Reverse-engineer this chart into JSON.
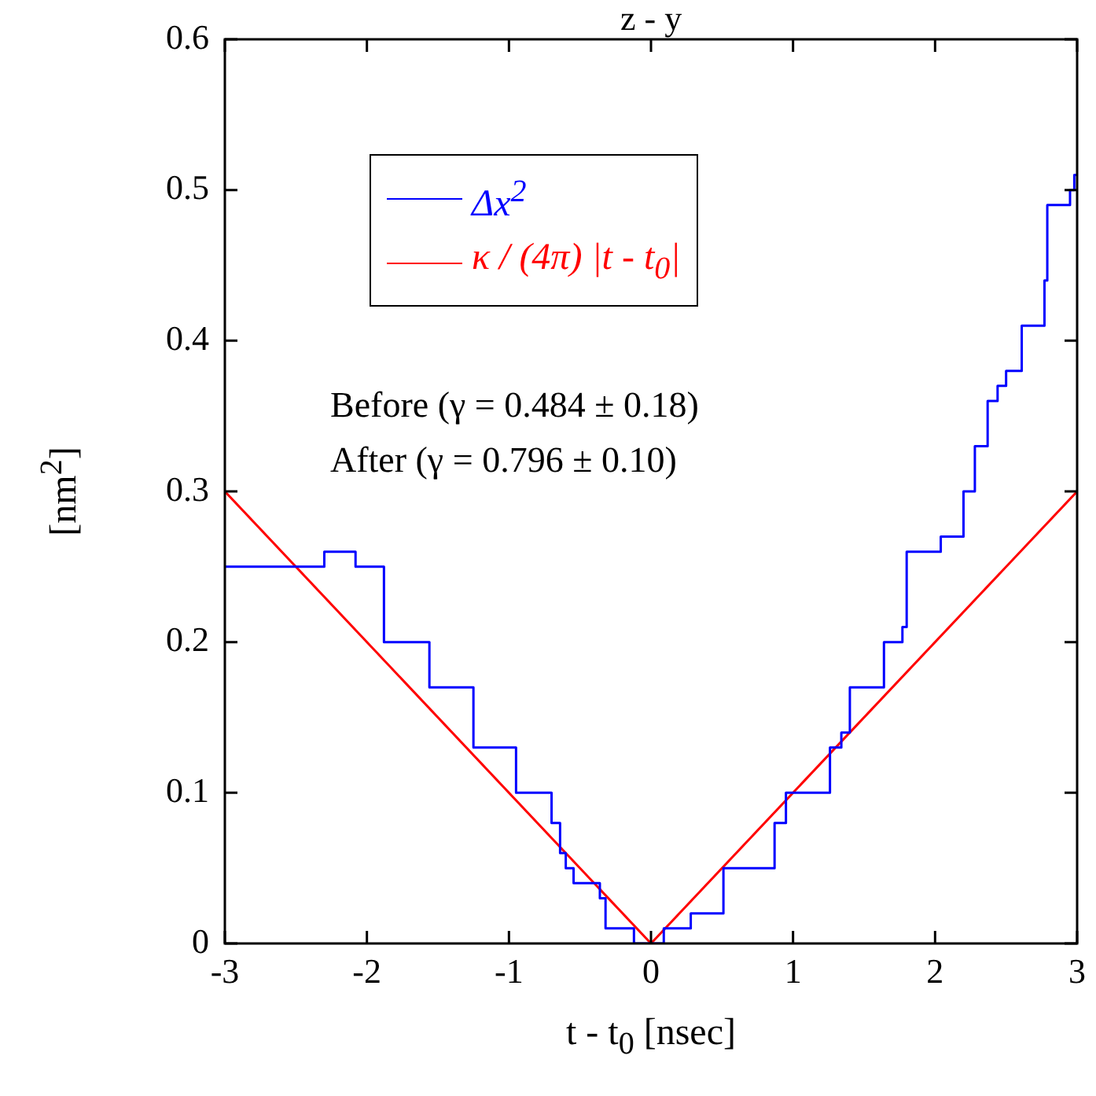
{
  "chart_data": {
    "type": "step",
    "title": "z - y",
    "xlabel": "t - t$_{0}$ [nsec]",
    "ylabel": "[nm$^{2}$]",
    "xlim": [
      -3,
      3
    ],
    "xticks": [
      -3,
      -2,
      -1,
      0,
      1,
      2,
      3
    ],
    "ylim": [
      0,
      0.6
    ],
    "yticks": [
      0,
      0.1,
      0.2,
      0.3,
      0.4,
      0.5,
      0.6
    ],
    "grid": false,
    "legend": "top left",
    "marker": "none",
    "annotations": [
      "Before (γ = 0.484 ± 0.18)",
      "After (γ = 0.796 ± 0.10)"
    ],
    "series": [
      {
        "name": "Δx$^{2}$",
        "type": "step",
        "color": "#0000ff",
        "x": [
          -3,
          -2.3,
          -2.08,
          -1.88,
          -1.56,
          -1.25,
          -0.95,
          -0.7,
          -0.64,
          -0.6,
          -0.545,
          -0.36,
          -0.32,
          -0.12,
          0.09,
          0.28,
          0.51,
          0.87,
          0.95,
          1.26,
          1.34,
          1.4,
          1.64,
          1.77,
          1.8,
          2.04,
          2.2,
          2.28,
          2.37,
          2.44,
          2.5,
          2.61,
          2.77,
          2.79,
          2.95,
          2.98,
          3
        ],
        "values": [
          0.25,
          0.26,
          0.25,
          0.2,
          0.17,
          0.13,
          0.1,
          0.08,
          0.06,
          0.05,
          0.04,
          0.03,
          0.01,
          0,
          0.01,
          0.02,
          0.05,
          0.08,
          0.1,
          0.13,
          0.14,
          0.17,
          0.2,
          0.21,
          0.26,
          0.27,
          0.3,
          0.33,
          0.36,
          0.37,
          0.38,
          0.41,
          0.44,
          0.49,
          0.5,
          0.51,
          0.51
        ]
      },
      {
        "name": "κ / (4π) |t - t$_{0}$|",
        "type": "line",
        "color": "#ff0000",
        "line_style": "solid",
        "x": [
          -3,
          0,
          3
        ],
        "values": [
          0.3,
          0,
          0.3
        ]
      }
    ]
  }
}
